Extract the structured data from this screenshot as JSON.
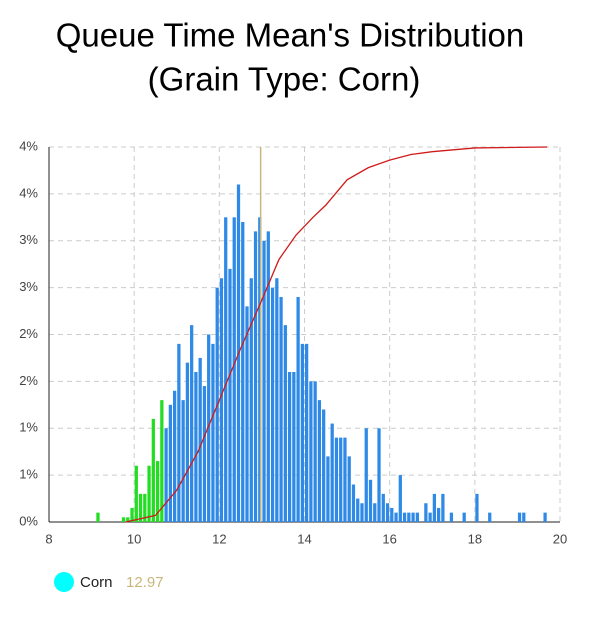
{
  "chart_data": {
    "type": "histogram",
    "title": "Queue Time Mean's Distribution",
    "subtitle": "(Grain Type: Corn)",
    "bins": [
      9.1,
      9.2,
      9.3,
      9.4,
      9.5,
      9.6,
      9.7,
      9.8,
      9.9,
      10.0,
      10.1,
      10.2,
      10.3,
      10.4,
      10.5,
      10.6,
      10.7,
      10.8,
      10.9,
      11.0,
      11.1,
      11.2,
      11.3,
      11.4,
      11.5,
      11.6,
      11.7,
      11.8,
      11.9,
      12.0,
      12.1,
      12.2,
      12.3,
      12.4,
      12.5,
      12.6,
      12.7,
      12.8,
      12.9,
      13.0,
      13.1,
      13.2,
      13.3,
      13.4,
      13.5,
      13.6,
      13.7,
      13.8,
      13.9,
      14.0,
      14.1,
      14.2,
      14.3,
      14.4,
      14.5,
      14.6,
      14.7,
      14.8,
      14.9,
      15.0,
      15.1,
      15.2,
      15.3,
      15.4,
      15.5,
      15.6,
      15.7,
      15.8,
      15.9,
      16.0,
      16.1,
      16.2,
      16.3,
      16.4,
      16.5,
      16.6,
      16.7,
      16.8,
      16.9,
      17.0,
      17.1,
      17.2,
      17.3,
      17.4,
      17.5,
      17.6,
      17.7,
      17.8,
      17.9,
      18.0,
      18.1,
      18.2,
      18.3,
      18.4,
      18.5,
      18.6,
      18.7,
      18.8,
      18.9,
      19.0,
      19.1,
      19.2,
      19.3,
      19.4,
      19.5,
      19.6,
      19.7
    ],
    "counts": [
      0.1,
      0,
      0,
      0,
      0,
      0,
      0.05,
      0.05,
      0.15,
      0.6,
      0.3,
      0.3,
      0.6,
      1.1,
      0.65,
      1.3,
      1.0,
      1.25,
      1.4,
      1.9,
      1.3,
      1.7,
      2.1,
      1.6,
      1.75,
      1.45,
      2.0,
      1.9,
      2.5,
      2.6,
      3.25,
      2.7,
      3.25,
      3.6,
      3.2,
      2.3,
      2.6,
      3.1,
      3.25,
      3.0,
      3.1,
      2.5,
      2.6,
      2.4,
      2.1,
      1.6,
      1.6,
      2.4,
      1.9,
      1.9,
      1.5,
      1.5,
      1.3,
      1.2,
      0.7,
      1.05,
      0.9,
      0.9,
      0.9,
      0.7,
      0.4,
      0.25,
      0.2,
      1.0,
      0.45,
      0.2,
      1.0,
      0.3,
      0.2,
      0.15,
      0.1,
      0.5,
      0.1,
      0.1,
      0.1,
      0.1,
      0,
      0.2,
      0.1,
      0.3,
      0.15,
      0.3,
      0,
      0.1,
      0,
      0,
      0.1,
      0,
      0,
      0.3,
      0,
      0,
      0.1,
      0,
      0,
      0,
      0,
      0,
      0,
      0.1,
      0.1,
      0,
      0,
      0,
      0,
      0.1
    ],
    "bar_colors": {
      "below": "#22dd22",
      "above": "#2e8ae6",
      "split": 10.7
    },
    "cumulative": {
      "color": "#d11a1a",
      "x": [
        9.8,
        10,
        10.5,
        11,
        11.5,
        12,
        12.5,
        13,
        13.4,
        13.8,
        14.2,
        14.5,
        15,
        15.5,
        16,
        16.5,
        17,
        18,
        19.7
      ],
      "y": [
        0,
        0.02,
        0.07,
        0.34,
        0.75,
        1.3,
        1.85,
        2.37,
        2.8,
        3.06,
        3.25,
        3.38,
        3.65,
        3.78,
        3.86,
        3.92,
        3.95,
        3.99,
        4.0
      ]
    },
    "marker": {
      "name": "Corn",
      "value": 12.97,
      "color": "#c8b77a",
      "legend_color": "#00ffff"
    },
    "xlim": [
      8,
      20
    ],
    "xticks": [
      8,
      10,
      12,
      14,
      16,
      18,
      20
    ],
    "ylim": [
      0,
      4
    ],
    "yticks": [
      {
        "value": 0,
        "label": "0%"
      },
      {
        "value": 0.5,
        "label": "1%"
      },
      {
        "value": 1,
        "label": "1%"
      },
      {
        "value": 1.5,
        "label": "2%"
      },
      {
        "value": 2,
        "label": "2%"
      },
      {
        "value": 2.5,
        "label": "3%"
      },
      {
        "value": 3,
        "label": "3%"
      },
      {
        "value": 3.5,
        "label": "4%"
      },
      {
        "value": 4,
        "label": "4%"
      }
    ],
    "grid": true
  }
}
